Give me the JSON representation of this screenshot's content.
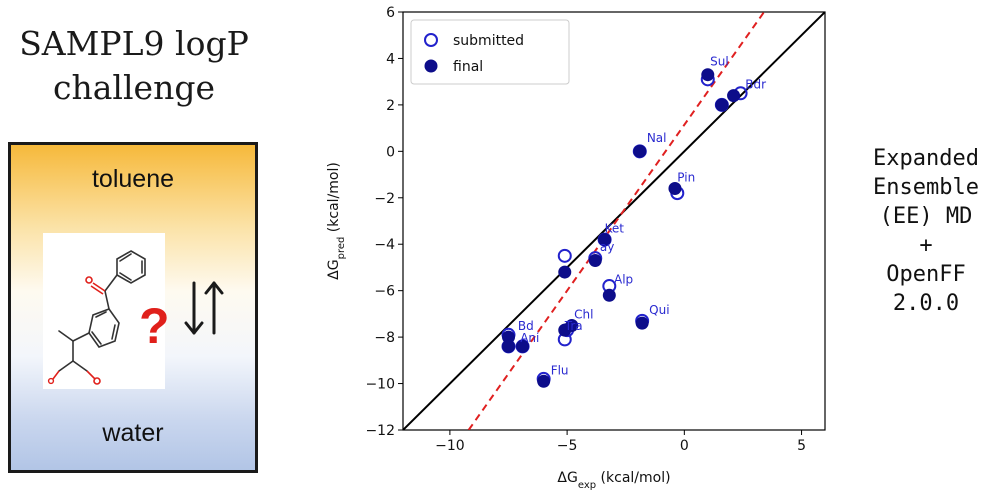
{
  "left_panel": {
    "title_line1": "SAMPL9 logP",
    "title_line2": "challenge",
    "top_phase": "toluene",
    "bottom_phase": "water",
    "question_mark": "?",
    "arrow_icon": "exchange-arrows-icon",
    "molecule_icon": "ketoprofen-structure-icon"
  },
  "right_label": {
    "lines": [
      "Expanded",
      "Ensemble",
      "(EE) MD",
      "+",
      "OpenFF",
      "2.0.0"
    ]
  },
  "chart_data": {
    "type": "scatter",
    "xlabel": "ΔG",
    "xlabel_sub": "exp",
    "xlabel_unit": " (kcal/mol)",
    "ylabel": "ΔG",
    "ylabel_sub": "pred",
    "ylabel_unit": " (kcal/mol)",
    "xlim": [
      -12,
      6
    ],
    "ylim": [
      -12,
      6
    ],
    "xticks": [
      -10,
      -5,
      0,
      5
    ],
    "yticks": [
      -12,
      -10,
      -8,
      -6,
      -4,
      -2,
      0,
      2,
      4,
      6
    ],
    "legend_position": "top-left",
    "series": [
      {
        "name": "submitted",
        "marker": "open-circle",
        "color": "#2222cc",
        "points": [
          {
            "x": 1.0,
            "y": 3.1
          },
          {
            "x": 2.4,
            "y": 2.5
          },
          {
            "x": 1.6,
            "y": 2.0
          },
          {
            "x": -1.9,
            "y": 0.0
          },
          {
            "x": -0.3,
            "y": -1.8
          },
          {
            "x": -3.4,
            "y": -3.8
          },
          {
            "x": -5.1,
            "y": -4.5
          },
          {
            "x": -3.8,
            "y": -4.6
          },
          {
            "x": -3.2,
            "y": -5.8
          },
          {
            "x": -5.0,
            "y": -7.7
          },
          {
            "x": -5.1,
            "y": -8.1
          },
          {
            "x": -7.5,
            "y": -7.9
          },
          {
            "x": -7.5,
            "y": -8.4
          },
          {
            "x": -6.9,
            "y": -8.4
          },
          {
            "x": -6.0,
            "y": -9.8
          },
          {
            "x": -1.8,
            "y": -7.3
          }
        ]
      },
      {
        "name": "final",
        "marker": "filled-circle",
        "color": "#0d0d8a",
        "points": [
          {
            "x": 1.0,
            "y": 3.3
          },
          {
            "x": 2.1,
            "y": 2.4
          },
          {
            "x": 1.6,
            "y": 2.0
          },
          {
            "x": -1.9,
            "y": 0.0
          },
          {
            "x": -0.4,
            "y": -1.6
          },
          {
            "x": -3.4,
            "y": -3.8
          },
          {
            "x": -5.1,
            "y": -5.2
          },
          {
            "x": -3.8,
            "y": -4.7
          },
          {
            "x": -3.2,
            "y": -6.2
          },
          {
            "x": -4.8,
            "y": -7.5
          },
          {
            "x": -5.1,
            "y": -7.7
          },
          {
            "x": -7.5,
            "y": -8.0
          },
          {
            "x": -7.5,
            "y": -8.4
          },
          {
            "x": -6.9,
            "y": -8.4
          },
          {
            "x": -6.0,
            "y": -9.9
          },
          {
            "x": -1.8,
            "y": -7.4
          }
        ]
      }
    ],
    "point_labels": [
      {
        "text": "Sul",
        "x": 1.1,
        "y": 3.7
      },
      {
        "text": "Bdr",
        "x": 2.6,
        "y": 2.7
      },
      {
        "text": "Nal",
        "x": -1.6,
        "y": 0.4
      },
      {
        "text": "Pin",
        "x": -0.3,
        "y": -1.3
      },
      {
        "text": "Ket",
        "x": -3.4,
        "y": -3.5
      },
      {
        "text": "ay",
        "x": -3.6,
        "y": -4.3
      },
      {
        "text": "Alp",
        "x": -3.0,
        "y": -5.7
      },
      {
        "text": "Qui",
        "x": -1.5,
        "y": -7.0
      },
      {
        "text": "Chl",
        "x": -4.7,
        "y": -7.2
      },
      {
        "text": "Tra",
        "x": -5.1,
        "y": -7.7
      },
      {
        "text": "Bd",
        "x": -7.1,
        "y": -7.7
      },
      {
        "text": "Ani",
        "x": -7.0,
        "y": -8.2
      },
      {
        "text": "Flu",
        "x": -5.7,
        "y": -9.6
      }
    ],
    "reference_lines": [
      {
        "kind": "identity",
        "style": "solid",
        "color": "#000000",
        "from": [
          -12,
          -12
        ],
        "to": [
          6,
          6
        ]
      },
      {
        "kind": "fit",
        "style": "dashed",
        "color": "#e02020",
        "from": [
          -9.2,
          -12
        ],
        "to": [
          3.4,
          6
        ]
      }
    ]
  }
}
